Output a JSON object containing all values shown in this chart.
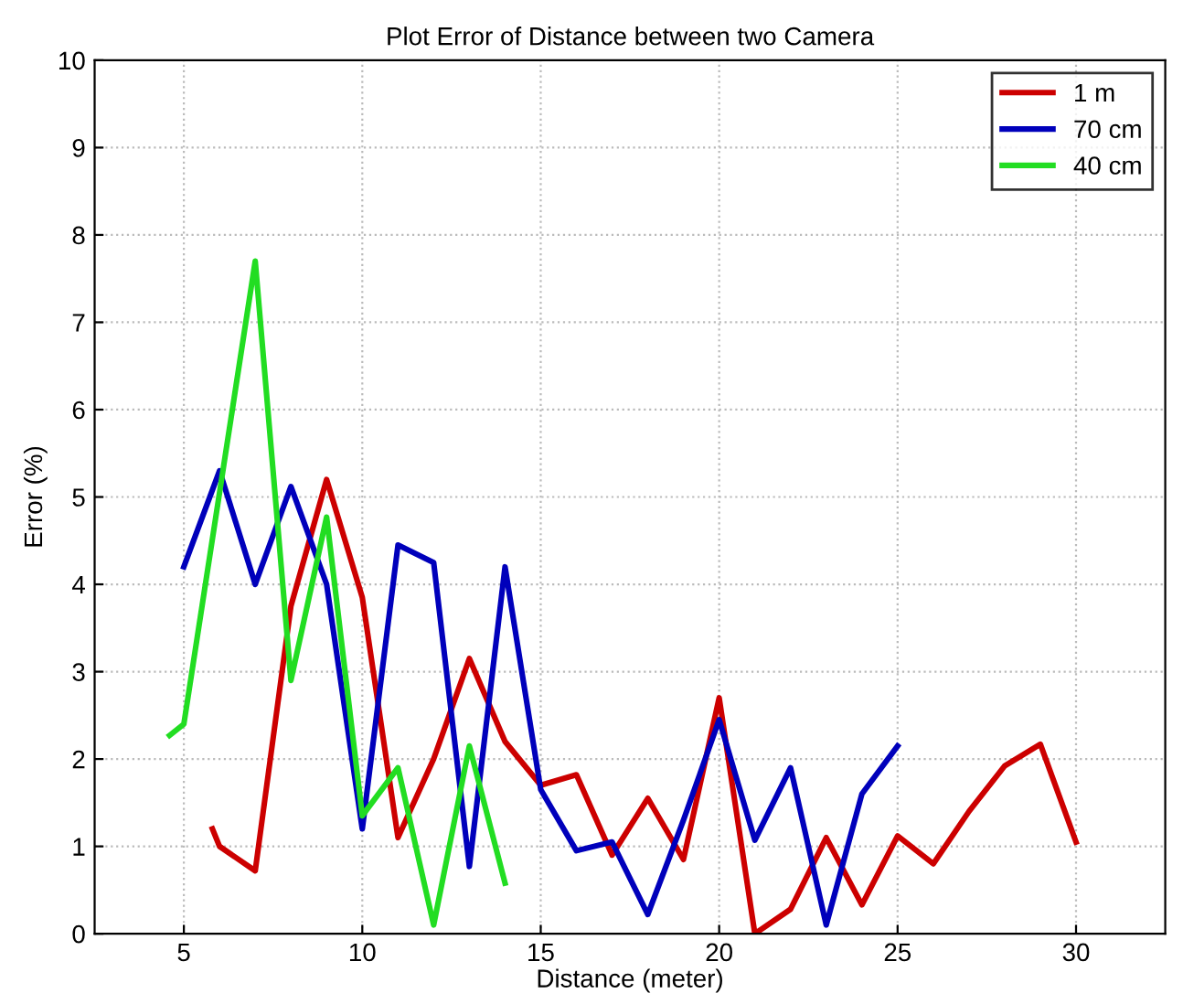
{
  "chart_data": {
    "type": "line",
    "title": "Plot Error of Distance between two Camera",
    "xlabel": "Distance (meter)",
    "ylabel": "Error (%)",
    "xlim": [
      2.5,
      32.5
    ],
    "xticks": [
      5,
      10,
      15,
      20,
      25,
      30
    ],
    "ylim": [
      0,
      10
    ],
    "yticks": [
      0,
      1,
      2,
      3,
      4,
      5,
      6,
      7,
      8,
      9,
      10
    ],
    "grid": true,
    "legend": "top right",
    "line_style": "solid",
    "series": [
      {
        "name": "1 m",
        "color": "#cc0000",
        "x": [
          5.8,
          6,
          7,
          8,
          9,
          10,
          11,
          12,
          13,
          14,
          15,
          16,
          17,
          18,
          19,
          20,
          21,
          22,
          23,
          24,
          25,
          26,
          27,
          28,
          29,
          30
        ],
        "values": [
          1.2,
          1.0,
          0.72,
          3.75,
          5.2,
          3.85,
          1.1,
          2.0,
          3.15,
          2.2,
          1.7,
          1.82,
          0.9,
          1.55,
          0.85,
          2.7,
          0.0,
          0.28,
          1.1,
          0.33,
          1.12,
          0.8,
          1.4,
          1.92,
          2.17,
          1.05
        ]
      },
      {
        "name": "70 cm",
        "color": "#0000bb",
        "x": [
          5,
          6,
          7,
          8,
          9,
          10,
          11,
          12,
          13,
          14,
          15,
          16,
          17,
          18,
          19,
          20,
          21,
          22,
          23,
          24,
          25
        ],
        "values": [
          4.2,
          5.3,
          4.0,
          5.12,
          4.0,
          1.2,
          4.45,
          4.25,
          0.77,
          4.2,
          1.65,
          0.95,
          1.05,
          0.22,
          1.3,
          2.45,
          1.07,
          1.9,
          0.1,
          1.6,
          2.15
        ]
      },
      {
        "name": "40 cm",
        "color": "#22dd22",
        "x": [
          4.6,
          5,
          7,
          8,
          9,
          10,
          11,
          12,
          13,
          14
        ],
        "values": [
          2.27,
          2.4,
          7.7,
          2.9,
          4.77,
          1.35,
          1.9,
          0.1,
          2.15,
          0.58
        ]
      }
    ]
  }
}
